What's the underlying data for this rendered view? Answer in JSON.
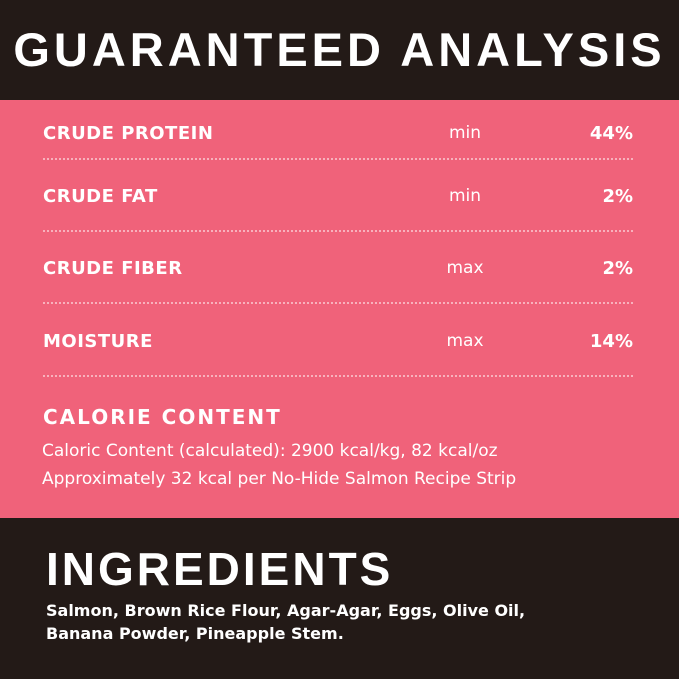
{
  "title": "GUARANTEED ANALYSIS",
  "colors": {
    "background": "#231a17",
    "band": "#f0627a",
    "text": "#ffffff"
  },
  "analysis": [
    {
      "label": "CRUDE PROTEIN",
      "qualifier": "min",
      "value": "44%"
    },
    {
      "label": "CRUDE FAT",
      "qualifier": "min",
      "value": "2%"
    },
    {
      "label": "CRUDE FIBER",
      "qualifier": "max",
      "value": "2%"
    },
    {
      "label": "MOISTURE",
      "qualifier": "max",
      "value": "14%"
    }
  ],
  "calorie": {
    "heading": "CALORIE CONTENT",
    "lines": [
      "Caloric Content (calculated): 2900 kcal/kg, 82 kcal/oz",
      "Approximately 32 kcal per No-Hide Salmon Recipe Strip"
    ]
  },
  "ingredients": {
    "heading": "INGREDIENTS",
    "lines": [
      "Salmon, Brown Rice Flour, Agar-Agar, Eggs, Olive Oil,",
      "Banana Powder, Pineapple Stem."
    ]
  }
}
